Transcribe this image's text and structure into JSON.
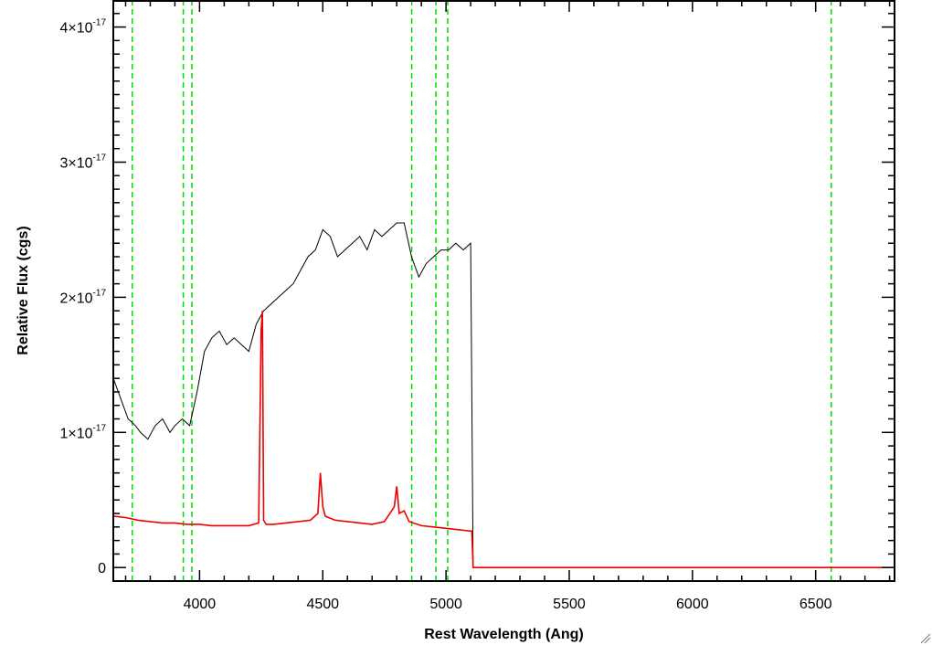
{
  "chart_data": {
    "type": "line",
    "title": "",
    "xlabel": "Rest Wavelength (Ang)",
    "ylabel": "Relative Flux (cgs)",
    "xlim": [
      3650,
      6820
    ],
    "ylim": [
      -1e-18,
      4.2e-17
    ],
    "x_ticks": [
      {
        "value": 4000,
        "label": "4000"
      },
      {
        "value": 4500,
        "label": "4500"
      },
      {
        "value": 5000,
        "label": "5000"
      },
      {
        "value": 5500,
        "label": "5500"
      },
      {
        "value": 6000,
        "label": "6000"
      },
      {
        "value": 6500,
        "label": "6500"
      }
    ],
    "y_ticks": [
      {
        "value": 0,
        "mantissa": "0",
        "exponent": ""
      },
      {
        "value": 1e-17,
        "mantissa": "1×10",
        "exponent": "-17"
      },
      {
        "value": 2e-17,
        "mantissa": "2×10",
        "exponent": "-17"
      },
      {
        "value": 3e-17,
        "mantissa": "3×10",
        "exponent": "-17"
      },
      {
        "value": 4e-17,
        "mantissa": "4×10",
        "exponent": "-17"
      }
    ],
    "vertical_lines": {
      "color": "#00dd00",
      "style": "dashed",
      "x": [
        3727,
        3934,
        3969,
        4861,
        4959,
        5007,
        6563
      ]
    },
    "series": [
      {
        "color": "#000000",
        "x": [
          3650,
          3680,
          3710,
          3740,
          3760,
          3790,
          3820,
          3850,
          3880,
          3900,
          3930,
          3960,
          3990,
          4020,
          4050,
          4080,
          4110,
          4140,
          4170,
          4200,
          4230,
          4260,
          4290,
          4320,
          4350,
          4380,
          4410,
          4440,
          4470,
          4500,
          4530,
          4560,
          4590,
          4620,
          4650,
          4680,
          4710,
          4740,
          4770,
          4800,
          4830,
          4860,
          4890,
          4920,
          4950,
          4980,
          5010,
          5040,
          5070,
          5100,
          5110,
          5120,
          6820
        ],
        "y": [
          1.4e-17,
          1.25e-17,
          1.1e-17,
          1.05e-17,
          1e-17,
          9.5e-18,
          1.05e-17,
          1.1e-17,
          1e-17,
          1.05e-17,
          1.1e-17,
          1.05e-17,
          1.3e-17,
          1.6e-17,
          1.7e-17,
          1.75e-17,
          1.65e-17,
          1.7e-17,
          1.65e-17,
          1.6e-17,
          1.8e-17,
          1.9e-17,
          1.95e-17,
          2e-17,
          2.05e-17,
          2.1e-17,
          2.2e-17,
          2.3e-17,
          2.35e-17,
          2.5e-17,
          2.45e-17,
          2.3e-17,
          2.35e-17,
          2.4e-17,
          2.45e-17,
          2.35e-17,
          2.5e-17,
          2.45e-17,
          2.5e-17,
          2.55e-17,
          2.55e-17,
          2.3e-17,
          2.15e-17,
          2.25e-17,
          2.3e-17,
          2.35e-17,
          2.35e-17,
          2.4e-17,
          2.35e-17,
          2.4e-17,
          0.0,
          0.0,
          0.0
        ]
      },
      {
        "color": "#ee0000",
        "x": [
          3650,
          3700,
          3750,
          3800,
          3850,
          3900,
          3950,
          4000,
          4050,
          4100,
          4150,
          4200,
          4240,
          4250,
          4255,
          4260,
          4270,
          4300,
          4350,
          4400,
          4450,
          4480,
          4490,
          4500,
          4510,
          4550,
          4600,
          4650,
          4700,
          4750,
          4790,
          4800,
          4810,
          4830,
          4850,
          4900,
          4950,
          5000,
          5050,
          5100,
          5105,
          5110,
          5120,
          6820
        ],
        "y": [
          3.8e-18,
          3.7e-18,
          3.5e-18,
          3.4e-18,
          3.3e-18,
          3.3e-18,
          3.2e-18,
          3.2e-18,
          3.1e-18,
          3.1e-18,
          3.1e-18,
          3.1e-18,
          3.3e-18,
          1.75e-17,
          1.9e-17,
          3.5e-18,
          3.2e-18,
          3.2e-18,
          3.3e-18,
          3.4e-18,
          3.5e-18,
          4e-18,
          7e-18,
          4.5e-18,
          3.8e-18,
          3.5e-18,
          3.4e-18,
          3.3e-18,
          3.2e-18,
          3.4e-18,
          4.5e-18,
          6e-18,
          4e-18,
          4.2e-18,
          3.4e-18,
          3.1e-18,
          3e-18,
          2.9e-18,
          2.8e-18,
          2.7e-18,
          2.7e-18,
          0.0,
          0.0,
          0.0
        ]
      }
    ]
  }
}
